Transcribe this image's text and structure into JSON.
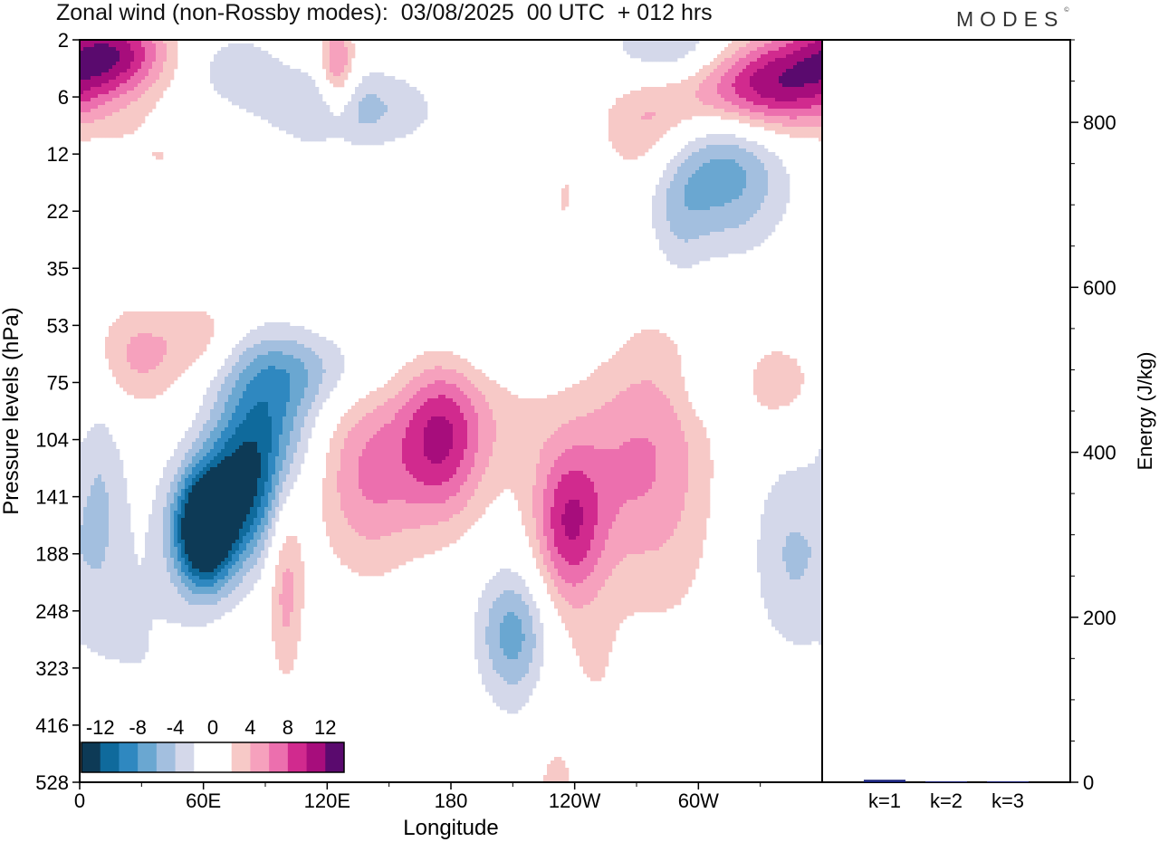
{
  "title": "Zonal wind (non-Rossby modes):  03/08/2025  00 UTC  + 012 hrs",
  "logo": "MODES",
  "colors": {
    "neg": [
      "#0d3a56",
      "#0f6a9c",
      "#2f88c0",
      "#6aa7d1",
      "#a3bfdf",
      "#d4d8ea"
    ],
    "pos": [
      "#f7c9c7",
      "#f6a1bd",
      "#ec6fae",
      "#d12a8e",
      "#a70d7c",
      "#5a0a6e"
    ],
    "bar": "#1a237e"
  },
  "chart_data": [
    {
      "type": "heatmap",
      "title": "Zonal wind (non-Rossby modes)",
      "xlabel": "Longitude",
      "ylabel": "Pressure levels (hPa)",
      "x_ticks": [
        "0",
        "60E",
        "120E",
        "180",
        "120W",
        "60W"
      ],
      "x_range_deg": [
        0,
        360
      ],
      "y_ticks": [
        "2",
        "6",
        "12",
        "22",
        "35",
        "53",
        "75",
        "104",
        "141",
        "188",
        "248",
        "323",
        "416",
        "528"
      ],
      "colorbar": {
        "levels": [
          -14,
          -12,
          -10,
          -8,
          -6,
          -4,
          -2,
          0,
          2,
          4,
          6,
          8,
          10,
          12,
          14
        ],
        "labels": [
          "-12",
          "-8",
          "-4",
          "0",
          "4",
          "8",
          "12"
        ]
      },
      "blobs": [
        {
          "lon": 60,
          "level": 8.6,
          "value": -17,
          "slon": 10,
          "slev": 0.7
        },
        {
          "lon": 78,
          "level": 7.9,
          "value": -11,
          "slon": 14,
          "slev": 0.9
        },
        {
          "lon": 92,
          "level": 6.6,
          "value": -7,
          "slon": 16,
          "slev": 0.9
        },
        {
          "lon": 110,
          "level": 5.8,
          "value": -4,
          "slon": 30,
          "slev": 0.5
        },
        {
          "lon": 10,
          "level": 8.0,
          "value": -3,
          "slon": 8,
          "slev": 1.4
        },
        {
          "lon": 30,
          "level": 10.5,
          "value": -2,
          "slon": 22,
          "slev": 2.5
        },
        {
          "lon": 210,
          "level": 10.4,
          "value": -7,
          "slon": 12,
          "slev": 0.8
        },
        {
          "lon": 230,
          "level": 12.6,
          "value": -3,
          "slon": 16,
          "slev": 0.8
        },
        {
          "lon": 310,
          "level": 2.2,
          "value": -8,
          "slon": 22,
          "slev": 1.0
        },
        {
          "lon": 290,
          "level": 3.2,
          "value": -3,
          "slon": 10,
          "slev": 1.2
        },
        {
          "lon": 345,
          "level": 9.0,
          "value": -4,
          "slon": 14,
          "slev": 1.2
        },
        {
          "lon": 310,
          "level": 6.0,
          "value": -3,
          "slon": 14,
          "slev": 0.5
        },
        {
          "lon": 200,
          "level": 5.3,
          "value": -3,
          "slon": 28,
          "slev": 0.6
        },
        {
          "lon": 290,
          "level": 0.2,
          "value": -6,
          "slon": 22,
          "slev": 0.5
        },
        {
          "lon": 130,
          "level": 1.2,
          "value": -5,
          "slon": 28,
          "slev": 0.5
        },
        {
          "lon": 75,
          "level": 0.5,
          "value": -3,
          "slon": 18,
          "slev": 0.5
        },
        {
          "lon": 40,
          "level": 3.8,
          "value": -2,
          "slon": 16,
          "slev": 0.7
        },
        {
          "lon": 190,
          "level": 2.8,
          "value": -2,
          "slon": 14,
          "slev": 0.8
        },
        {
          "lon": 140,
          "level": 7.6,
          "value": 6,
          "slon": 18,
          "slev": 1.2
        },
        {
          "lon": 175,
          "level": 7.0,
          "value": 8,
          "slon": 14,
          "slev": 1.0
        },
        {
          "lon": 195,
          "level": 6.4,
          "value": 3,
          "slon": 30,
          "slev": 1.2
        },
        {
          "lon": 237,
          "level": 8.5,
          "value": 9,
          "slon": 12,
          "slev": 1.0
        },
        {
          "lon": 265,
          "level": 7.5,
          "value": 5,
          "slon": 18,
          "slev": 1.4
        },
        {
          "lon": 290,
          "level": 7.0,
          "value": 3,
          "slon": 16,
          "slev": 2.5
        },
        {
          "lon": 100,
          "level": 9.5,
          "value": 5,
          "slon": 6,
          "slev": 1.2
        },
        {
          "lon": 230,
          "level": 13.0,
          "value": 5,
          "slon": 10,
          "slev": 1.0
        },
        {
          "lon": 335,
          "level": 6.0,
          "value": 4,
          "slon": 14,
          "slev": 0.5
        },
        {
          "lon": 30,
          "level": 5.5,
          "value": 5,
          "slon": 16,
          "slev": 0.7
        },
        {
          "lon": 60,
          "level": 5.2,
          "value": 3,
          "slon": 12,
          "slev": 0.5
        },
        {
          "lon": 95,
          "level": 3.5,
          "value": 2,
          "slon": 28,
          "slev": 0.6
        },
        {
          "lon": 330,
          "level": 0.8,
          "value": 13,
          "slon": 30,
          "slev": 0.6
        },
        {
          "lon": 280,
          "level": 1.6,
          "value": 5,
          "slon": 18,
          "slev": 0.7
        },
        {
          "lon": 15,
          "level": 0.2,
          "value": 10,
          "slon": 20,
          "slev": 0.5
        },
        {
          "lon": 125,
          "level": 0.5,
          "value": 7,
          "slon": 6,
          "slev": 0.6
        },
        {
          "lon": 40,
          "level": 2.1,
          "value": 2,
          "slon": 20,
          "slev": 0.5
        },
        {
          "lon": 235,
          "level": 2.8,
          "value": 2,
          "slon": 8,
          "slev": 1.0
        },
        {
          "lon": 250,
          "level": 11.5,
          "value": 2,
          "slon": 14,
          "slev": 1.2
        }
      ]
    },
    {
      "type": "bar",
      "categories": [
        "k=1",
        "k=2",
        "k=3"
      ],
      "values": [
        3,
        1,
        1
      ],
      "ylabel": "Energy (J/kg)",
      "ylim": [
        0,
        900
      ],
      "y_ticks": [
        0,
        200,
        400,
        600,
        800
      ]
    }
  ]
}
